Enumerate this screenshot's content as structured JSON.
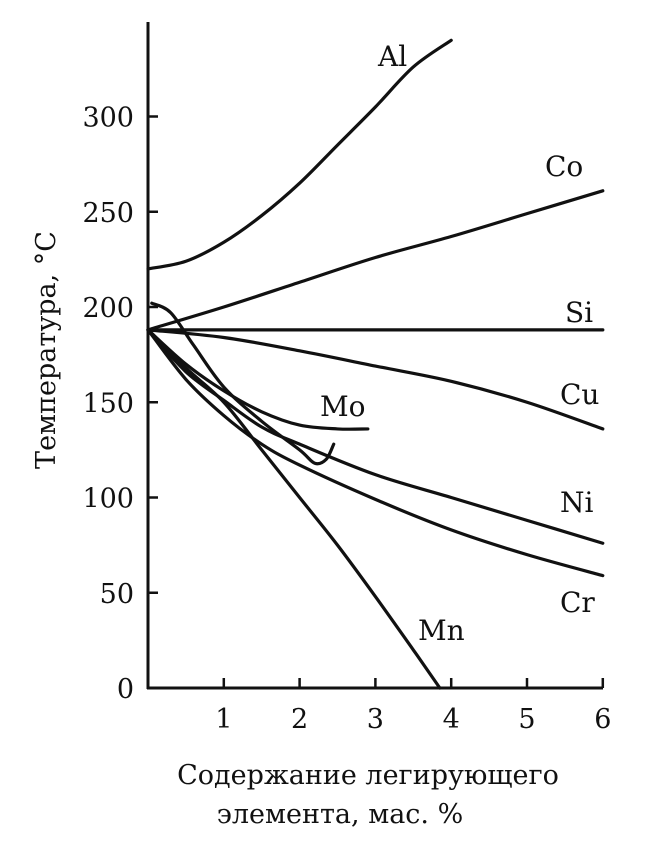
{
  "chart_data": {
    "type": "line",
    "title": "",
    "xlabel": "Содержание легирующего элемента, мас. %",
    "xlabel_lines": [
      "Содержание легирующего",
      "элемента, мас. %"
    ],
    "ylabel": "Температура, °С",
    "xlim": [
      0,
      6
    ],
    "ylim": [
      0,
      340
    ],
    "xticks": [
      1,
      2,
      3,
      4,
      5,
      6
    ],
    "yticks": [
      0,
      50,
      100,
      150,
      200,
      250,
      300
    ],
    "grid": false,
    "legend": "none",
    "line_color": "#111111",
    "series": [
      {
        "name": "Al",
        "points": [
          [
            0,
            220
          ],
          [
            0.5,
            224
          ],
          [
            1,
            234
          ],
          [
            1.5,
            248
          ],
          [
            2,
            265
          ],
          [
            2.5,
            285
          ],
          [
            3,
            305
          ],
          [
            3.5,
            326
          ],
          [
            4,
            340
          ]
        ]
      },
      {
        "name": "Co",
        "points": [
          [
            0,
            188
          ],
          [
            1,
            200
          ],
          [
            2,
            213
          ],
          [
            3,
            226
          ],
          [
            4,
            237
          ],
          [
            5,
            249
          ],
          [
            6,
            261
          ]
        ]
      },
      {
        "name": "Si",
        "points": [
          [
            0,
            188
          ],
          [
            6,
            188
          ]
        ]
      },
      {
        "name": "Cu",
        "points": [
          [
            0,
            188
          ],
          [
            1,
            184
          ],
          [
            2,
            177
          ],
          [
            3,
            169
          ],
          [
            4,
            161
          ],
          [
            5,
            150
          ],
          [
            6,
            136
          ]
        ]
      },
      {
        "name": "Mo",
        "points": [
          [
            0,
            188
          ],
          [
            0.5,
            170
          ],
          [
            1,
            156
          ],
          [
            1.5,
            145
          ],
          [
            2,
            138
          ],
          [
            2.5,
            136
          ],
          [
            2.9,
            136
          ]
        ]
      },
      {
        "name": "Ni",
        "points": [
          [
            0,
            188
          ],
          [
            0.5,
            166
          ],
          [
            1,
            151
          ],
          [
            1.5,
            137
          ],
          [
            2,
            128
          ],
          [
            3,
            112
          ],
          [
            4,
            100
          ],
          [
            5,
            88
          ],
          [
            6,
            76
          ]
        ]
      },
      {
        "name": "Cr",
        "points": [
          [
            0,
            188
          ],
          [
            0.5,
            162
          ],
          [
            1,
            143
          ],
          [
            1.5,
            128
          ],
          [
            2,
            117
          ],
          [
            3,
            99
          ],
          [
            4,
            83
          ],
          [
            5,
            70
          ],
          [
            6,
            59
          ]
        ]
      },
      {
        "name": "Mn",
        "points": [
          [
            0,
            188
          ],
          [
            0.5,
            168
          ],
          [
            1,
            150
          ],
          [
            1.5,
            125
          ],
          [
            2,
            100
          ],
          [
            2.5,
            75
          ],
          [
            3,
            48
          ],
          [
            3.5,
            20
          ],
          [
            3.85,
            0
          ]
        ]
      },
      {
        "name": "",
        "points": [
          [
            0.05,
            202
          ],
          [
            0.3,
            197
          ],
          [
            0.6,
            180
          ],
          [
            1,
            158
          ],
          [
            1.5,
            140
          ],
          [
            2,
            125
          ],
          [
            2.2,
            118
          ],
          [
            2.35,
            120
          ],
          [
            2.45,
            128
          ]
        ]
      }
    ]
  }
}
